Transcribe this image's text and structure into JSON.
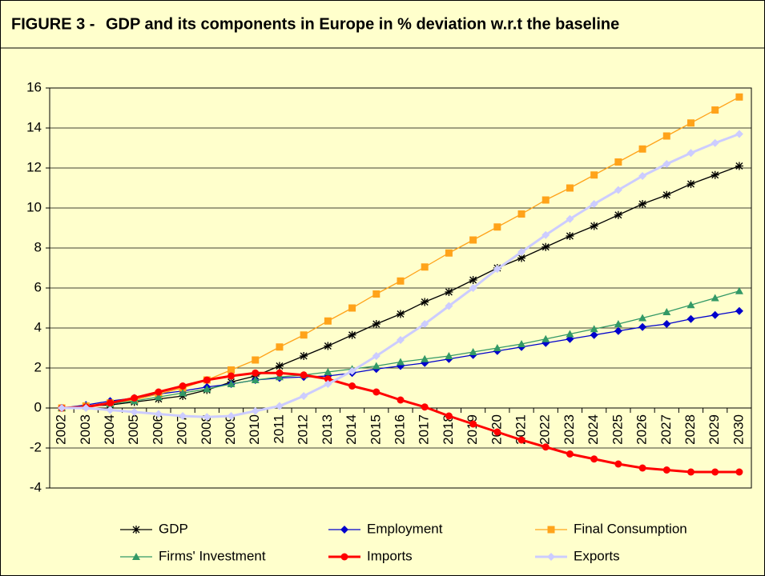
{
  "chart_data": {
    "type": "line",
    "figure_label": "FIGURE 3 -",
    "title": "GDP and its components in Europe in % deviation w.r.t the baseline",
    "categories": [
      "2002",
      "2003",
      "2004",
      "2005",
      "2006",
      "2007",
      "2008",
      "2009",
      "2010",
      "2011",
      "2012",
      "2013",
      "2014",
      "2015",
      "2016",
      "2017",
      "2018",
      "2019",
      "2020",
      "2021",
      "2022",
      "2023",
      "2024",
      "2025",
      "2026",
      "2027",
      "2028",
      "2029",
      "2030"
    ],
    "ylim": [
      -4,
      16
    ],
    "yticks": [
      -4,
      -2,
      0,
      2,
      4,
      6,
      8,
      10,
      12,
      14,
      16
    ],
    "grid": true,
    "legend": "bottom",
    "series": [
      {
        "name": "GDP",
        "color": "#000000",
        "marker": "star",
        "values": [
          0,
          0.1,
          0.15,
          0.3,
          0.45,
          0.6,
          0.9,
          1.3,
          1.6,
          2.1,
          2.6,
          3.1,
          3.65,
          4.2,
          4.7,
          5.3,
          5.8,
          6.4,
          7.0,
          7.5,
          8.05,
          8.6,
          9.1,
          9.65,
          10.2,
          10.65,
          11.2,
          11.65,
          12.1
        ]
      },
      {
        "name": "Employment",
        "color": "#0000cc",
        "marker": "diamond",
        "values": [
          0,
          0.15,
          0.35,
          0.5,
          0.7,
          0.85,
          1.05,
          1.2,
          1.4,
          1.5,
          1.55,
          1.6,
          1.75,
          1.95,
          2.1,
          2.25,
          2.45,
          2.65,
          2.85,
          3.05,
          3.25,
          3.45,
          3.65,
          3.85,
          4.05,
          4.2,
          4.45,
          4.65,
          4.85
        ]
      },
      {
        "name": "Final Consumption",
        "color": "#ffa31a",
        "marker": "square",
        "values": [
          0,
          0.1,
          0.25,
          0.4,
          0.7,
          1.0,
          1.4,
          1.9,
          2.4,
          3.05,
          3.65,
          4.35,
          5.0,
          5.7,
          6.35,
          7.05,
          7.75,
          8.4,
          9.05,
          9.7,
          10.4,
          11.0,
          11.65,
          12.3,
          12.95,
          13.6,
          14.25,
          14.9,
          15.55
        ]
      },
      {
        "name": "Firms' Investment",
        "color": "#339966",
        "marker": "triangle",
        "values": [
          0,
          0.1,
          0.2,
          0.35,
          0.55,
          0.75,
          0.95,
          1.2,
          1.4,
          1.55,
          1.65,
          1.8,
          1.95,
          2.1,
          2.3,
          2.45,
          2.6,
          2.8,
          3.0,
          3.2,
          3.45,
          3.7,
          3.95,
          4.2,
          4.5,
          4.8,
          5.15,
          5.5,
          5.85
        ]
      },
      {
        "name": "Imports",
        "color": "#ff0000",
        "marker": "circle",
        "values": [
          0,
          0.05,
          0.25,
          0.5,
          0.8,
          1.1,
          1.4,
          1.6,
          1.75,
          1.75,
          1.65,
          1.45,
          1.1,
          0.8,
          0.4,
          0.05,
          -0.4,
          -0.8,
          -1.2,
          -1.6,
          -1.95,
          -2.3,
          -2.55,
          -2.8,
          -3.0,
          -3.1,
          -3.2,
          -3.2,
          -3.2
        ]
      },
      {
        "name": "Exports",
        "color": "#ccccff",
        "marker": "diamond",
        "values": [
          0,
          0.0,
          -0.1,
          -0.2,
          -0.3,
          -0.4,
          -0.45,
          -0.4,
          -0.15,
          0.1,
          0.6,
          1.2,
          1.85,
          2.6,
          3.4,
          4.2,
          5.1,
          6.0,
          6.95,
          7.8,
          8.65,
          9.45,
          10.2,
          10.9,
          11.6,
          12.2,
          12.75,
          13.25,
          13.7
        ]
      }
    ]
  }
}
